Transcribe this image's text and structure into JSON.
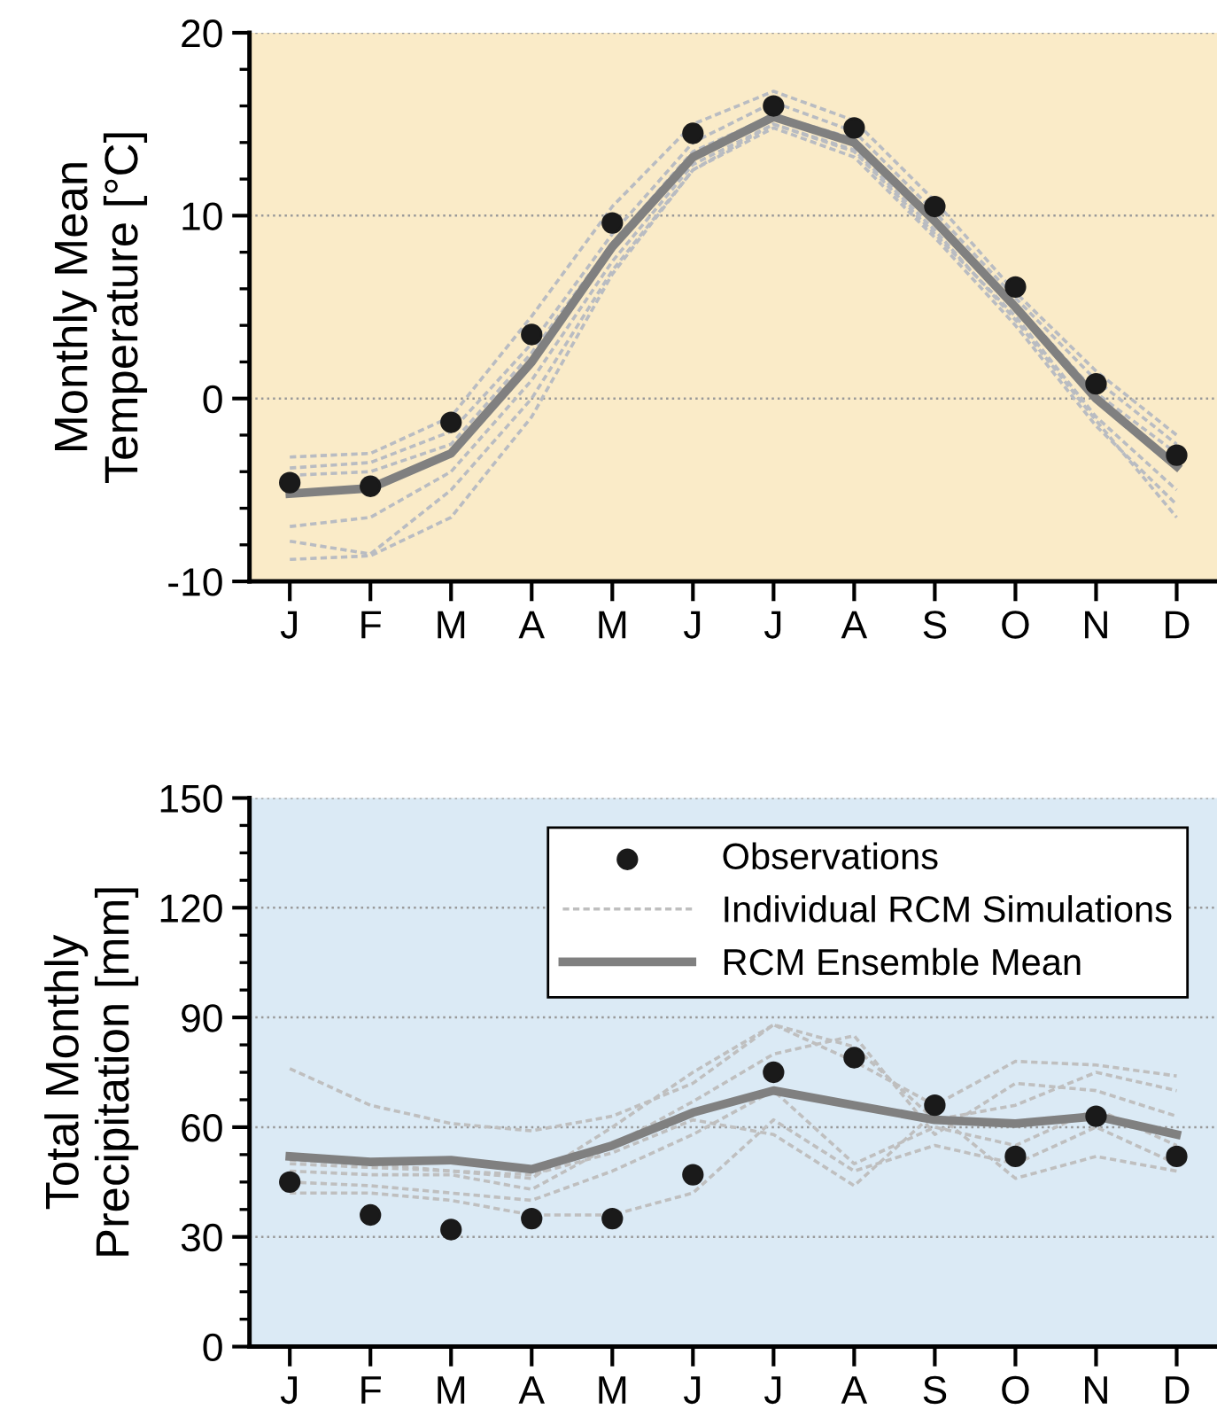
{
  "chart_data": [
    {
      "type": "line",
      "ylabel": "Monthly Mean\nTemperature [°C]",
      "categories": [
        "J",
        "F",
        "M",
        "A",
        "M",
        "J",
        "J",
        "A",
        "S",
        "O",
        "N",
        "D"
      ],
      "ylim": [
        -10,
        20
      ],
      "yticks": [
        -10,
        0,
        10,
        20
      ],
      "grid": "y",
      "series": [
        {
          "color": "#b9bcc2",
          "line_style": "dashed",
          "marker": "none",
          "values": [
            -3.2,
            -3.0,
            -1.0,
            4.5,
            10.5,
            15.0,
            16.8,
            15.2,
            10.8,
            5.8,
            1.5,
            -2.0
          ]
        },
        {
          "color": "#b9bcc2",
          "line_style": "dashed",
          "marker": "none",
          "values": [
            -3.8,
            -3.5,
            -1.8,
            3.0,
            9.0,
            14.0,
            16.2,
            14.6,
            10.2,
            5.5,
            1.0,
            -2.5
          ]
        },
        {
          "color": "#b9bcc2",
          "line_style": "dashed",
          "marker": "none",
          "values": [
            -4.2,
            -4.0,
            -2.5,
            2.5,
            8.5,
            13.5,
            15.5,
            14.2,
            9.8,
            5.2,
            0.3,
            -3.0
          ]
        },
        {
          "color": "#b9bcc2",
          "line_style": "dashed",
          "marker": "none",
          "values": [
            -7.0,
            -6.5,
            -4.0,
            1.0,
            7.5,
            12.8,
            15.0,
            13.5,
            9.0,
            4.5,
            -1.0,
            -5.0
          ]
        },
        {
          "color": "#b9bcc2",
          "line_style": "dashed",
          "marker": "none",
          "values": [
            -7.8,
            -8.5,
            -5.0,
            0.0,
            7.0,
            12.5,
            14.8,
            13.2,
            8.8,
            4.0,
            -1.5,
            -5.8
          ]
        },
        {
          "color": "#b9bcc2",
          "line_style": "dashed",
          "marker": "none",
          "values": [
            -8.8,
            -8.6,
            -6.5,
            -1.0,
            6.8,
            12.5,
            15.0,
            13.6,
            9.2,
            4.3,
            -1.2,
            -6.5
          ]
        },
        {
          "color": "#808080",
          "line_style": "solid",
          "marker": "none",
          "values": [
            -5.2,
            -4.9,
            -3.0,
            2.0,
            8.3,
            13.2,
            15.4,
            14.0,
            9.7,
            5.0,
            0.0,
            -3.7
          ]
        },
        {
          "type": "scatter",
          "color": "#1a1a1a",
          "marker": "circle",
          "values": [
            -4.6,
            -4.8,
            -1.3,
            3.5,
            9.6,
            14.5,
            16.0,
            14.8,
            10.5,
            6.1,
            0.8,
            -3.1
          ]
        }
      ]
    },
    {
      "type": "line",
      "ylabel": "Total Monthly\nPrecipitation [mm]",
      "categories": [
        "J",
        "F",
        "M",
        "A",
        "M",
        "J",
        "J",
        "A",
        "S",
        "O",
        "N",
        "D"
      ],
      "ylim": [
        0,
        150
      ],
      "yticks": [
        0,
        30,
        60,
        90,
        120,
        150
      ],
      "grid": "y",
      "legend": "top right",
      "series": [
        {
          "name": "Observations",
          "type": "scatter",
          "color": "#1a1a1a",
          "marker": "circle",
          "values": [
            45,
            36,
            32,
            35,
            35,
            47,
            75,
            79,
            66,
            52,
            63,
            52
          ]
        },
        {
          "name": "Individual RCM Simulations",
          "color": "#bfbfbf",
          "line_style": "dashed",
          "marker": "none",
          "values": [
            76,
            66,
            61,
            59,
            63,
            72,
            88,
            78,
            66,
            78,
            77,
            74
          ]
        },
        {
          "color": "#bfbfbf",
          "line_style": "dashed",
          "marker": "none",
          "values": [
            51,
            50,
            48,
            46,
            60,
            75,
            88,
            82,
            62,
            66,
            75,
            70
          ]
        },
        {
          "color": "#bfbfbf",
          "line_style": "dashed",
          "marker": "none",
          "values": [
            48,
            47,
            47,
            43,
            55,
            67,
            80,
            85,
            58,
            72,
            70,
            63
          ]
        },
        {
          "color": "#bfbfbf",
          "line_style": "dashed",
          "marker": "none",
          "values": [
            45,
            44,
            42,
            40,
            48,
            58,
            70,
            50,
            60,
            55,
            65,
            55
          ]
        },
        {
          "color": "#bfbfbf",
          "line_style": "dashed",
          "marker": "none",
          "values": [
            42,
            42,
            40,
            36,
            36,
            42,
            62,
            48,
            55,
            50,
            60,
            50
          ]
        },
        {
          "color": "#bfbfbf",
          "line_style": "dashed",
          "marker": "none",
          "values": [
            50,
            49,
            48,
            47,
            53,
            62,
            58,
            44,
            64,
            46,
            52,
            48
          ]
        },
        {
          "name": "RCM Ensemble Mean",
          "color": "#808080",
          "line_style": "solid",
          "marker": "none",
          "values": [
            52,
            50.5,
            51,
            48.5,
            55,
            64,
            70,
            66,
            62,
            61,
            63,
            58
          ]
        }
      ]
    }
  ]
}
